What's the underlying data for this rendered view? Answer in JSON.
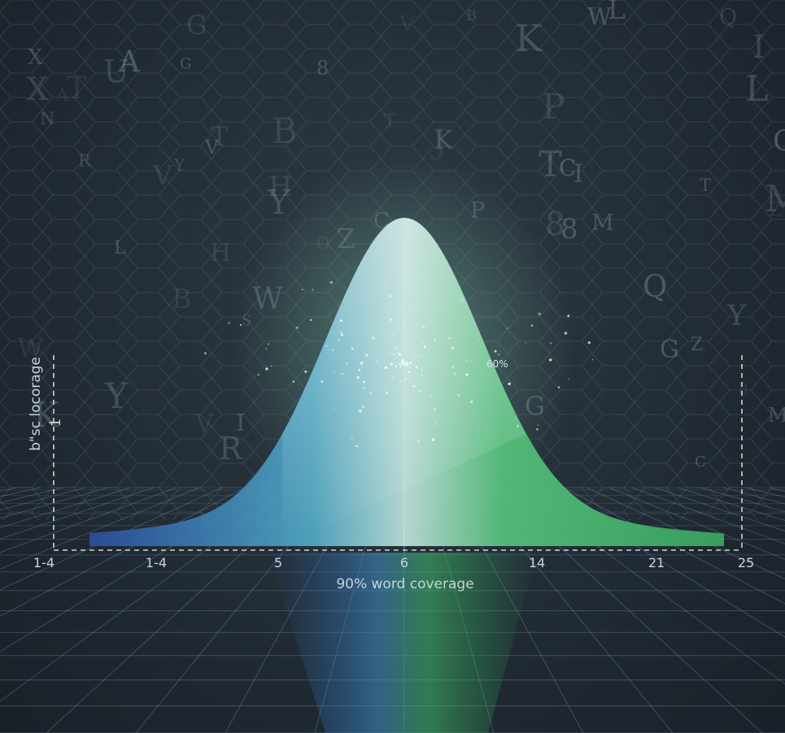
{
  "chart_data": {
    "type": "area",
    "title": "",
    "xlabel": "90% word coverage",
    "ylabel": "b\"sc locorage",
    "y_tick_labels": [
      "1"
    ],
    "x_tick_labels": [
      "1-4",
      "1-4",
      "5",
      "6",
      "14",
      "21",
      "25"
    ],
    "annotations": [
      "60%"
    ],
    "grid": false,
    "colors": {
      "curve_left": "#2a5fa8",
      "curve_peak": "#cfe8de",
      "curve_right": "#3fbf6a",
      "axis": "#d0d6da"
    }
  }
}
